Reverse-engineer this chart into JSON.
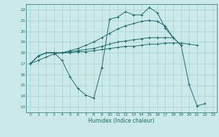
{
  "xlabel": "Humidex (Indice chaleur)",
  "background_color": "#cce9e9",
  "grid_color": "#aad4d4",
  "line_color": "#1a6b6b",
  "xlim": [
    -0.5,
    23.5
  ],
  "ylim": [
    12.5,
    22.5
  ],
  "xticks": [
    0,
    1,
    2,
    3,
    4,
    5,
    6,
    7,
    8,
    9,
    10,
    11,
    12,
    13,
    14,
    15,
    16,
    17,
    18,
    19,
    20,
    21,
    22,
    23
  ],
  "yticks": [
    13,
    14,
    15,
    16,
    17,
    18,
    19,
    20,
    21,
    22
  ],
  "series": [
    [
      17.0,
      17.7,
      18.0,
      18.0,
      17.3,
      15.8,
      14.7,
      14.1,
      13.8,
      16.6,
      21.1,
      21.3,
      21.8,
      21.5,
      21.5,
      22.2,
      21.7,
      20.3,
      19.4,
      18.7,
      15.1,
      13.1,
      13.3,
      null
    ],
    [
      17.0,
      17.7,
      18.0,
      18.0,
      18.0,
      18.0,
      18.1,
      18.1,
      18.2,
      18.3,
      18.4,
      18.5,
      18.6,
      18.6,
      18.7,
      18.8,
      18.8,
      18.9,
      18.9,
      18.9,
      18.8,
      18.7,
      null,
      null
    ],
    [
      17.0,
      17.3,
      17.6,
      17.9,
      18.0,
      18.1,
      18.2,
      18.3,
      18.4,
      18.6,
      18.8,
      19.0,
      19.1,
      19.2,
      19.3,
      19.4,
      19.4,
      19.4,
      19.4,
      18.7,
      null,
      null,
      null,
      null
    ],
    [
      17.0,
      17.7,
      18.0,
      18.0,
      18.0,
      18.2,
      18.4,
      18.7,
      19.0,
      19.4,
      19.8,
      20.2,
      20.5,
      20.7,
      20.9,
      21.0,
      20.9,
      20.5,
      19.4,
      null,
      null,
      null,
      null,
      null
    ]
  ]
}
